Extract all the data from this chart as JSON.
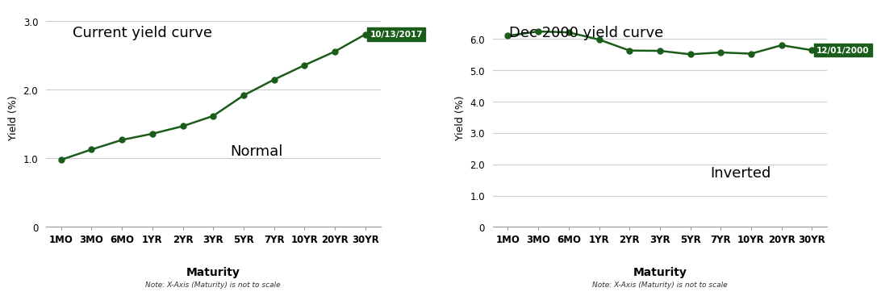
{
  "chart1": {
    "title": "Current yield curve",
    "label": "Normal",
    "date_label": "10/13/2017",
    "x_labels": [
      "1MO",
      "3MO",
      "6MO",
      "1YR",
      "2YR",
      "3YR",
      "5YR",
      "7YR",
      "10YR",
      "20YR",
      "30YR"
    ],
    "y_values": [
      0.98,
      1.13,
      1.27,
      1.36,
      1.47,
      1.62,
      1.92,
      2.15,
      2.36,
      2.56,
      2.81
    ],
    "ylim": [
      0,
      3.2
    ],
    "yticks": [
      0,
      1.0,
      2.0,
      3.0
    ],
    "ylabel": "Yield (%)"
  },
  "chart2": {
    "title": "Dec 2000 yield curve",
    "label": "Inverted",
    "date_label": "12/01/2000",
    "x_labels": [
      "1MO",
      "3MO",
      "6MO",
      "1YR",
      "2YR",
      "3YR",
      "5YR",
      "7YR",
      "10YR",
      "20YR",
      "30YR"
    ],
    "y_values": [
      6.1,
      6.24,
      6.21,
      5.98,
      5.63,
      5.62,
      5.51,
      5.57,
      5.53,
      5.8,
      5.64
    ],
    "ylim": [
      0,
      7.0
    ],
    "yticks": [
      0,
      1.0,
      2.0,
      3.0,
      4.0,
      5.0,
      6.0
    ],
    "ylabel": "Yield (%)"
  },
  "line_color": "#1a5c1a",
  "date_box_color": "#1a5c1a",
  "date_text_color": "#ffffff",
  "xlabel": "Maturity",
  "xlabel_note": "Note: X-Axis (Maturity) is not to scale",
  "bg_color": "#ffffff",
  "grid_color": "#cccccc"
}
